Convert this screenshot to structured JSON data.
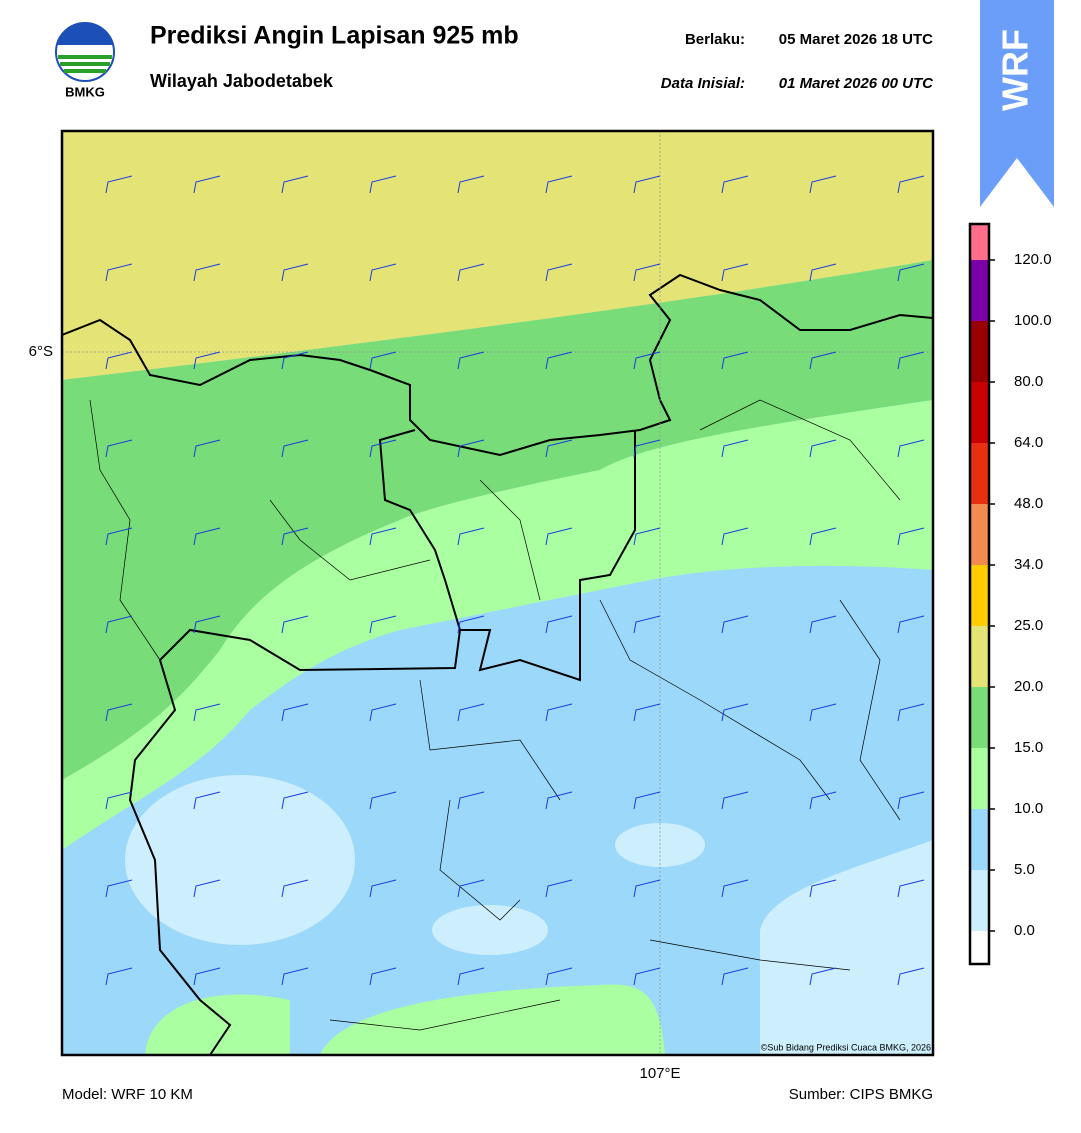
{
  "header": {
    "logo_text": "BMKG",
    "title": "Prediksi Angin Lapisan 925 mb",
    "subtitle": "Wilayah Jabodetabek",
    "valid_label": "Berlaku:",
    "valid_time": "05 Maret 2026 18 UTC",
    "initial_label": "Data Inisial:",
    "initial_time": "01 Maret 2026 00 UTC"
  },
  "badge": "WRF",
  "map": {
    "lat_label": "6°S",
    "lon_label": "107°E",
    "credit": "©Sub Bidang Prediksi Cuaca BMKG, 2026"
  },
  "colorbar": {
    "colors": [
      "#ffffff",
      "#cdeefc",
      "#9cd8fa",
      "#aaffa0",
      "#78dc78",
      "#e4e476",
      "#ffcc00",
      "#f38a50",
      "#e83010",
      "#c80000",
      "#9a0000",
      "#7a00a8",
      "#ff6e8a"
    ],
    "ticks": [
      {
        "value": 0,
        "label": "0.0"
      },
      {
        "value": 5,
        "label": "5.0"
      },
      {
        "value": 10,
        "label": "10.0"
      },
      {
        "value": 15,
        "label": "15.0"
      },
      {
        "value": 20,
        "label": "20.0"
      },
      {
        "value": 25,
        "label": "25.0"
      },
      {
        "value": 34,
        "label": "34.0"
      },
      {
        "value": 48,
        "label": "48.0"
      },
      {
        "value": 64,
        "label": "64.0"
      },
      {
        "value": 80,
        "label": "80.0"
      },
      {
        "value": 100,
        "label": "100.0"
      },
      {
        "value": 120,
        "label": "120.0"
      }
    ]
  },
  "footer": {
    "model": "Model: WRF 10 KM",
    "source": "Sumber: CIPS BMKG"
  }
}
